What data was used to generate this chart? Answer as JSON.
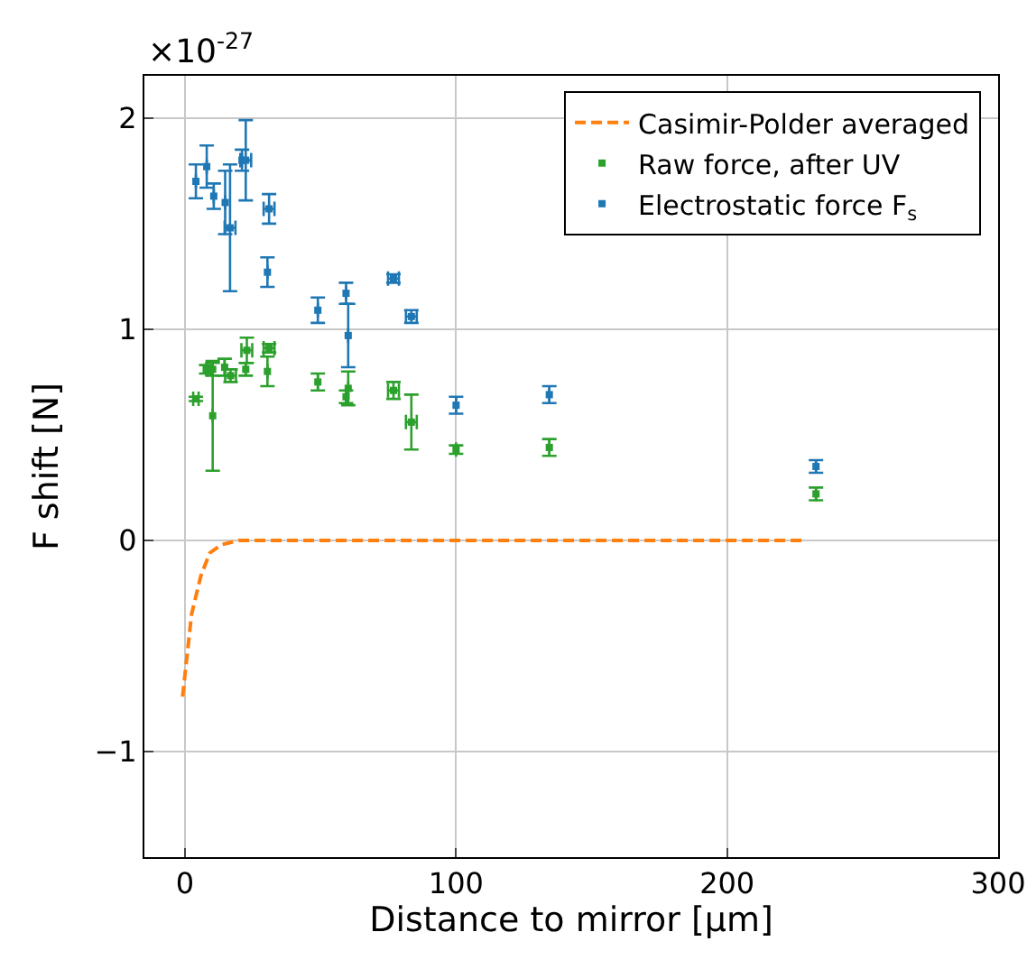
{
  "chart_data": {
    "type": "scatter",
    "xlabel": "Distance to mirror [μm]",
    "ylabel": "F shift [N]",
    "annotations": [
      "×10$^{-27}$"
    ],
    "xlim": [
      -15,
      300
    ],
    "xticks": [
      0,
      100,
      200,
      300
    ],
    "ylim": [
      -1.5,
      2.2
    ],
    "yticks": [
      -1,
      0,
      1,
      2
    ],
    "grid": true,
    "legend": "top right",
    "series": [
      {
        "name": "Casimir-Polder averaged",
        "type": "line",
        "color": "#ff7f0e",
        "line_style": "dashed",
        "marker": "none",
        "x": [
          -0.9,
          2.4,
          5.8,
          9.1,
          13.5,
          20,
          229
        ],
        "values": [
          -0.74,
          -0.35,
          -0.17,
          -0.06,
          -0.02,
          0,
          0
        ]
      },
      {
        "name": "Raw force, after UV",
        "color": "#2ca02c",
        "marker": "square",
        "x": [
          4,
          7.8,
          10.2,
          10.2,
          14.6,
          16.8,
          22.4,
          22.8,
          30.4,
          31,
          49,
          59.4,
          60.2,
          76.9,
          83.5,
          100,
          134.4,
          232.8
        ],
        "values": [
          0.67,
          0.81,
          0.59,
          0.81,
          0.82,
          0.78,
          0.81,
          0.9,
          0.8,
          0.91,
          0.75,
          0.68,
          0.72,
          0.71,
          0.56,
          0.43,
          0.44,
          0.22
        ],
        "errors": [
          0.01,
          0.02,
          0.26,
          0.03,
          0.04,
          0.03,
          0.03,
          0.06,
          0.07,
          0.02,
          0.04,
          0.03,
          0.08,
          0.04,
          0.13,
          0.02,
          0.04,
          0.03
        ],
        "xerrors": [
          1,
          null,
          null,
          null,
          null,
          2,
          null,
          2,
          null,
          2,
          null,
          null,
          null,
          2,
          2,
          null,
          null,
          null
        ]
      },
      {
        "name": "Electrostatic force F$_{s}$",
        "color": "#1f77b4",
        "marker": "square",
        "x": [
          4,
          8,
          10.6,
          14.8,
          16.6,
          21,
          22.4,
          30.4,
          31,
          49,
          59.4,
          60.2,
          76.9,
          83.5,
          100,
          134.4,
          232.8
        ],
        "values": [
          1.7,
          1.77,
          1.63,
          1.6,
          1.48,
          1.8,
          1.8,
          1.27,
          1.57,
          1.09,
          1.17,
          0.97,
          1.24,
          1.06,
          0.64,
          0.69,
          0.35
        ],
        "errors": [
          0.08,
          0.1,
          0.06,
          0.15,
          0.3,
          0.05,
          0.19,
          0.07,
          0.07,
          0.06,
          0.05,
          0.15,
          0.02,
          0.03,
          0.04,
          0.04,
          0.03
        ],
        "xerrors": [
          null,
          null,
          null,
          null,
          2,
          null,
          2,
          null,
          2,
          null,
          null,
          null,
          2,
          2,
          null,
          null,
          null
        ]
      }
    ]
  }
}
